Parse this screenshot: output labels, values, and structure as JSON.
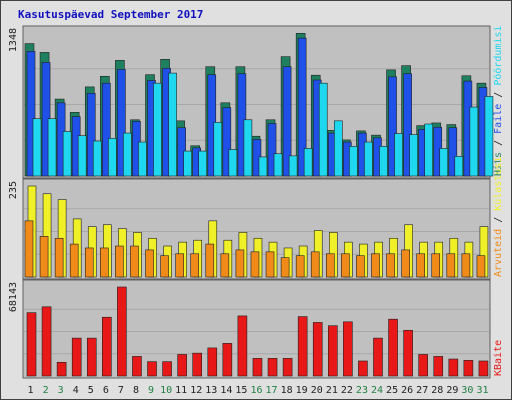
{
  "title": "Kasutuspäevad September 2017",
  "colors": {
    "bg": "#c0c0c0",
    "page": "#e0e0e0",
    "border": "#404040",
    "hits": "#1f8060",
    "files": "#1f50e8",
    "pages": "#1fd8f0",
    "visits": "#f0f028",
    "sites": "#f08a18",
    "kbytes": "#e81818",
    "label_weekday": "#202020",
    "label_weekend": "#208040"
  },
  "chart_data": {
    "type": "bar",
    "categories": [
      "1",
      "2",
      "3",
      "4",
      "5",
      "6",
      "7",
      "8",
      "9",
      "10",
      "11",
      "12",
      "13",
      "14",
      "15",
      "16",
      "17",
      "18",
      "19",
      "20",
      "21",
      "22",
      "23",
      "24",
      "25",
      "26",
      "27",
      "28",
      "29",
      "30",
      "31"
    ],
    "weekend": [
      false,
      true,
      true,
      false,
      false,
      false,
      false,
      false,
      true,
      true,
      false,
      false,
      false,
      false,
      false,
      true,
      true,
      false,
      false,
      false,
      false,
      false,
      true,
      true,
      false,
      false,
      false,
      false,
      false,
      true,
      true
    ],
    "panels": [
      {
        "name": "hits-files-pages",
        "ymax_label": "1348",
        "ymax": 1348,
        "legend": [
          {
            "label": "Hits",
            "color_key": "hits"
          },
          {
            "label": "Faile",
            "color_key": "files"
          },
          {
            "label": "Pöördumisi",
            "color_key": "pages"
          }
        ],
        "series": [
          {
            "name": "Hits",
            "color_key": "hits",
            "values": [
              1248,
              1165,
              725,
              600,
              840,
              940,
              1090,
              530,
              955,
              1100,
              520,
              285,
              1030,
              690,
              1030,
              375,
              530,
              1125,
              1345,
              950,
              430,
              340,
              425,
              385,
              1000,
              1040,
              475,
              500,
              485,
              945,
              875
            ]
          },
          {
            "name": "Faile",
            "color_key": "files",
            "values": [
              1175,
              1070,
              690,
              560,
              780,
              875,
              1005,
              515,
              900,
              1015,
              455,
              265,
              955,
              645,
              965,
              345,
              495,
              1030,
              1300,
              905,
              405,
              320,
              405,
              360,
              935,
              965,
              440,
              460,
              455,
              895,
              835
            ]
          },
          {
            "name": "Pöördumisi",
            "color_key": "pages",
            "values": [
              540,
              540,
              420,
              380,
              330,
              355,
              405,
              320,
              875,
              970,
              235,
              235,
              505,
              250,
              530,
              180,
              210,
              190,
              260,
              875,
              520,
              280,
              320,
              280,
              400,
              390,
              490,
              260,
              185,
              650,
              750
            ]
          }
        ]
      },
      {
        "name": "visits-sites",
        "ymax_label": "235",
        "ymax": 235,
        "legend": [
          {
            "label": "Arvuteid",
            "color_key": "sites"
          },
          {
            "label": "Külastusi",
            "color_key": "visits"
          }
        ],
        "series": [
          {
            "name": "Külastusi",
            "color_key": "visits",
            "values": [
              235,
              215,
              200,
              150,
              130,
              135,
              125,
              115,
              100,
              80,
              90,
              95,
              145,
              95,
              115,
              100,
              90,
              75,
              80,
              120,
              115,
              90,
              85,
              90,
              100,
              135,
              90,
              90,
              100,
              90,
              130
            ]
          },
          {
            "name": "Arvuteid",
            "color_key": "sites",
            "values": [
              145,
              105,
              100,
              85,
              75,
              75,
              80,
              80,
              70,
              55,
              60,
              60,
              85,
              60,
              70,
              65,
              65,
              50,
              55,
              65,
              60,
              60,
              55,
              60,
              60,
              70,
              60,
              60,
              60,
              60,
              55
            ]
          }
        ]
      },
      {
        "name": "kbytes",
        "ymax_label": "68143",
        "ymax": 68143,
        "legend": [
          {
            "label": "KBaite",
            "color_key": "kbytes"
          }
        ],
        "series": [
          {
            "name": "KBaite",
            "color_key": "kbytes",
            "values": [
              48500,
              53000,
              10500,
              29000,
              29000,
              45000,
              68143,
              15000,
              11000,
              11000,
              16500,
              17500,
              21500,
              25000,
              46000,
              13500,
              13500,
              13500,
              45500,
              41000,
              38500,
              41500,
              11500,
              29000,
              43500,
              35000,
              16500,
              15000,
              13000,
              12000,
              11500
            ]
          }
        ]
      }
    ]
  }
}
